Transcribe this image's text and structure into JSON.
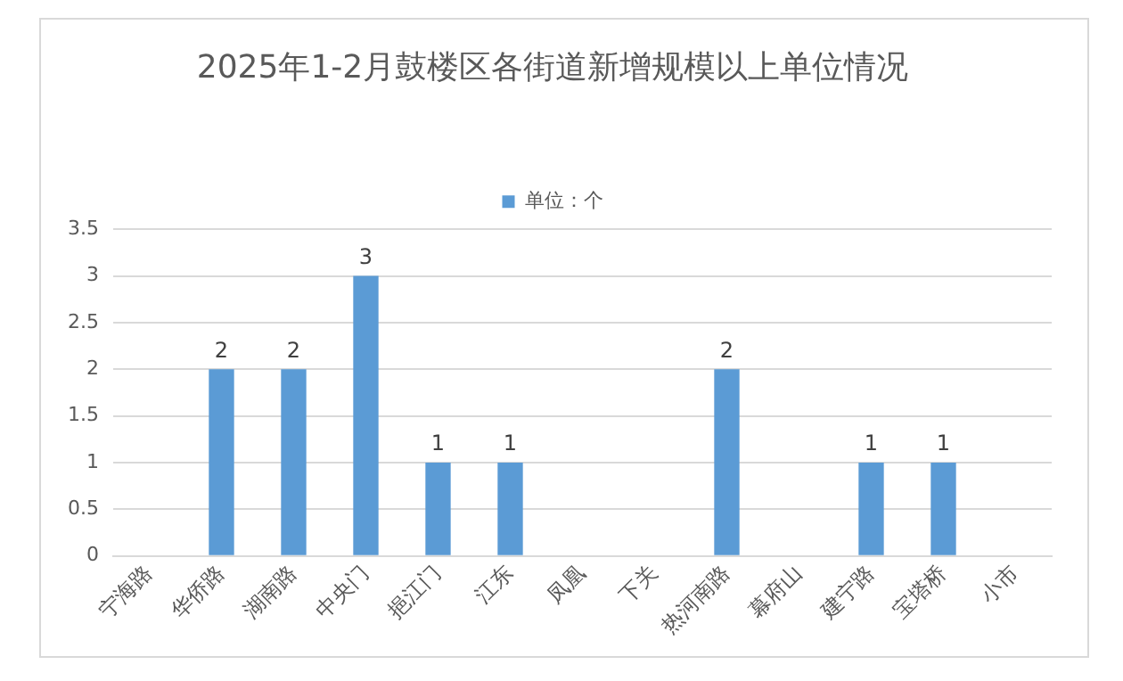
{
  "chart_data": {
    "type": "bar",
    "title": "2025年1-2月鼓楼区各街道新增规模以上单位情况",
    "categories": [
      "宁海路",
      "华侨路",
      "湖南路",
      "中央门",
      "挹江门",
      "江东",
      "凤凰",
      "下关",
      "热河南路",
      "幕府山",
      "建宁路",
      "宝塔桥",
      "小市"
    ],
    "series": [
      {
        "name": "单位：个",
        "color": "#5b9bd5",
        "values": [
          0,
          2,
          2,
          3,
          1,
          1,
          0,
          0,
          2,
          0,
          1,
          1,
          0
        ],
        "value_labels": [
          null,
          "2",
          "2",
          "3",
          "1",
          "1",
          null,
          null,
          "2",
          null,
          "1",
          "1",
          null
        ]
      }
    ],
    "ylim": [
      0,
      3.5
    ],
    "yticks": [
      0,
      0.5,
      1,
      1.5,
      2,
      2.5,
      3,
      3.5
    ],
    "grid": "y",
    "legend": "top"
  }
}
